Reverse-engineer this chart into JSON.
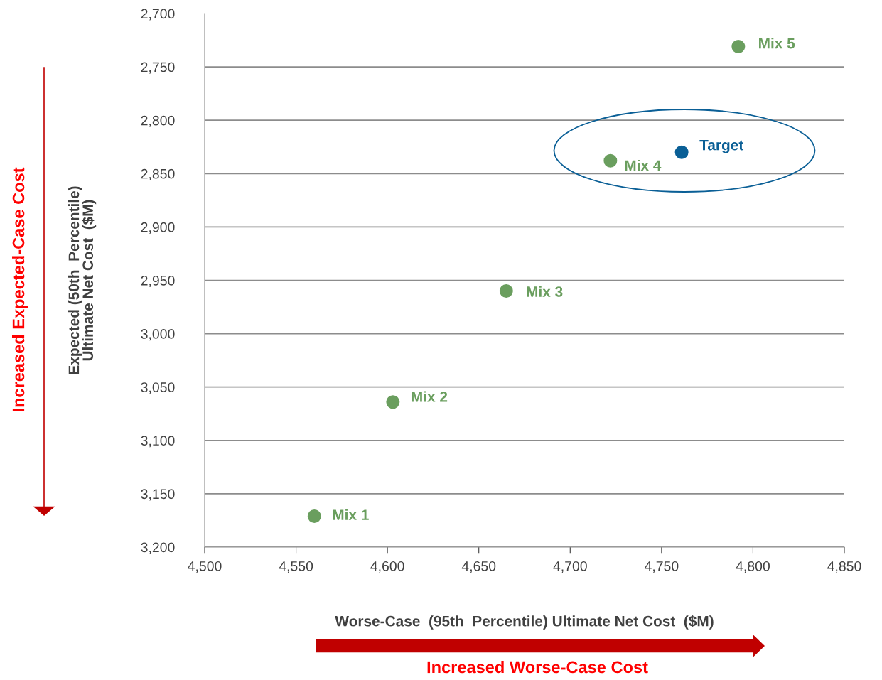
{
  "chart_data": {
    "type": "scatter",
    "xlabel": "Worse-Case  (95th  Percentile) Ultimate Net Cost  ($M)",
    "ylabel": "Expected (50th  Percentile)\nUltimate Net Cost  ($M)",
    "series": [
      {
        "name": "Mix 1",
        "color": "#6a9e5e",
        "x": [
          4560
        ],
        "values": [
          3171
        ]
      },
      {
        "name": "Mix 2",
        "color": "#6a9e5e",
        "x": [
          4603
        ],
        "values": [
          3064
        ]
      },
      {
        "name": "Mix 3",
        "color": "#6a9e5e",
        "x": [
          4665
        ],
        "values": [
          2960
        ]
      },
      {
        "name": "Mix 4",
        "color": "#6a9e5e",
        "x": [
          4722
        ],
        "values": [
          2838
        ]
      },
      {
        "name": "Mix 5",
        "color": "#6a9e5e",
        "x": [
          4792
        ],
        "values": [
          2731
        ]
      },
      {
        "name": "Target",
        "color": "#0a5f96",
        "x": [
          4761
        ],
        "values": [
          2830
        ]
      }
    ],
    "xlim": [
      4500,
      4850
    ],
    "ylim": [
      3200,
      2700
    ],
    "xticks": [
      {
        "value": 4500,
        "label": "4,500"
      },
      {
        "value": 4550,
        "label": "4,550"
      },
      {
        "value": 4600,
        "label": "4,600"
      },
      {
        "value": 4650,
        "label": "4,650"
      },
      {
        "value": 4700,
        "label": "4,700"
      },
      {
        "value": 4750,
        "label": "4,750"
      },
      {
        "value": 4800,
        "label": "4,800"
      },
      {
        "value": 4850,
        "label": "4,850"
      }
    ],
    "yticks": [
      {
        "value": 2700,
        "label": "2,700"
      },
      {
        "value": 2750,
        "label": "2,750"
      },
      {
        "value": 2800,
        "label": "2,800"
      },
      {
        "value": 2850,
        "label": "2,850"
      },
      {
        "value": 2900,
        "label": "2,900"
      },
      {
        "value": 2950,
        "label": "2,950"
      },
      {
        "value": 3000,
        "label": "3,000"
      },
      {
        "value": 3050,
        "label": "3,050"
      },
      {
        "value": 3100,
        "label": "3,100"
      },
      {
        "value": 3150,
        "label": "3,150"
      },
      {
        "value": 3200,
        "label": "3,200"
      }
    ],
    "grid": "y",
    "marker": "circle",
    "legend": false,
    "annotations": [
      "Increased Expected-Case Cost",
      "Increased Worse-Case Cost"
    ]
  }
}
